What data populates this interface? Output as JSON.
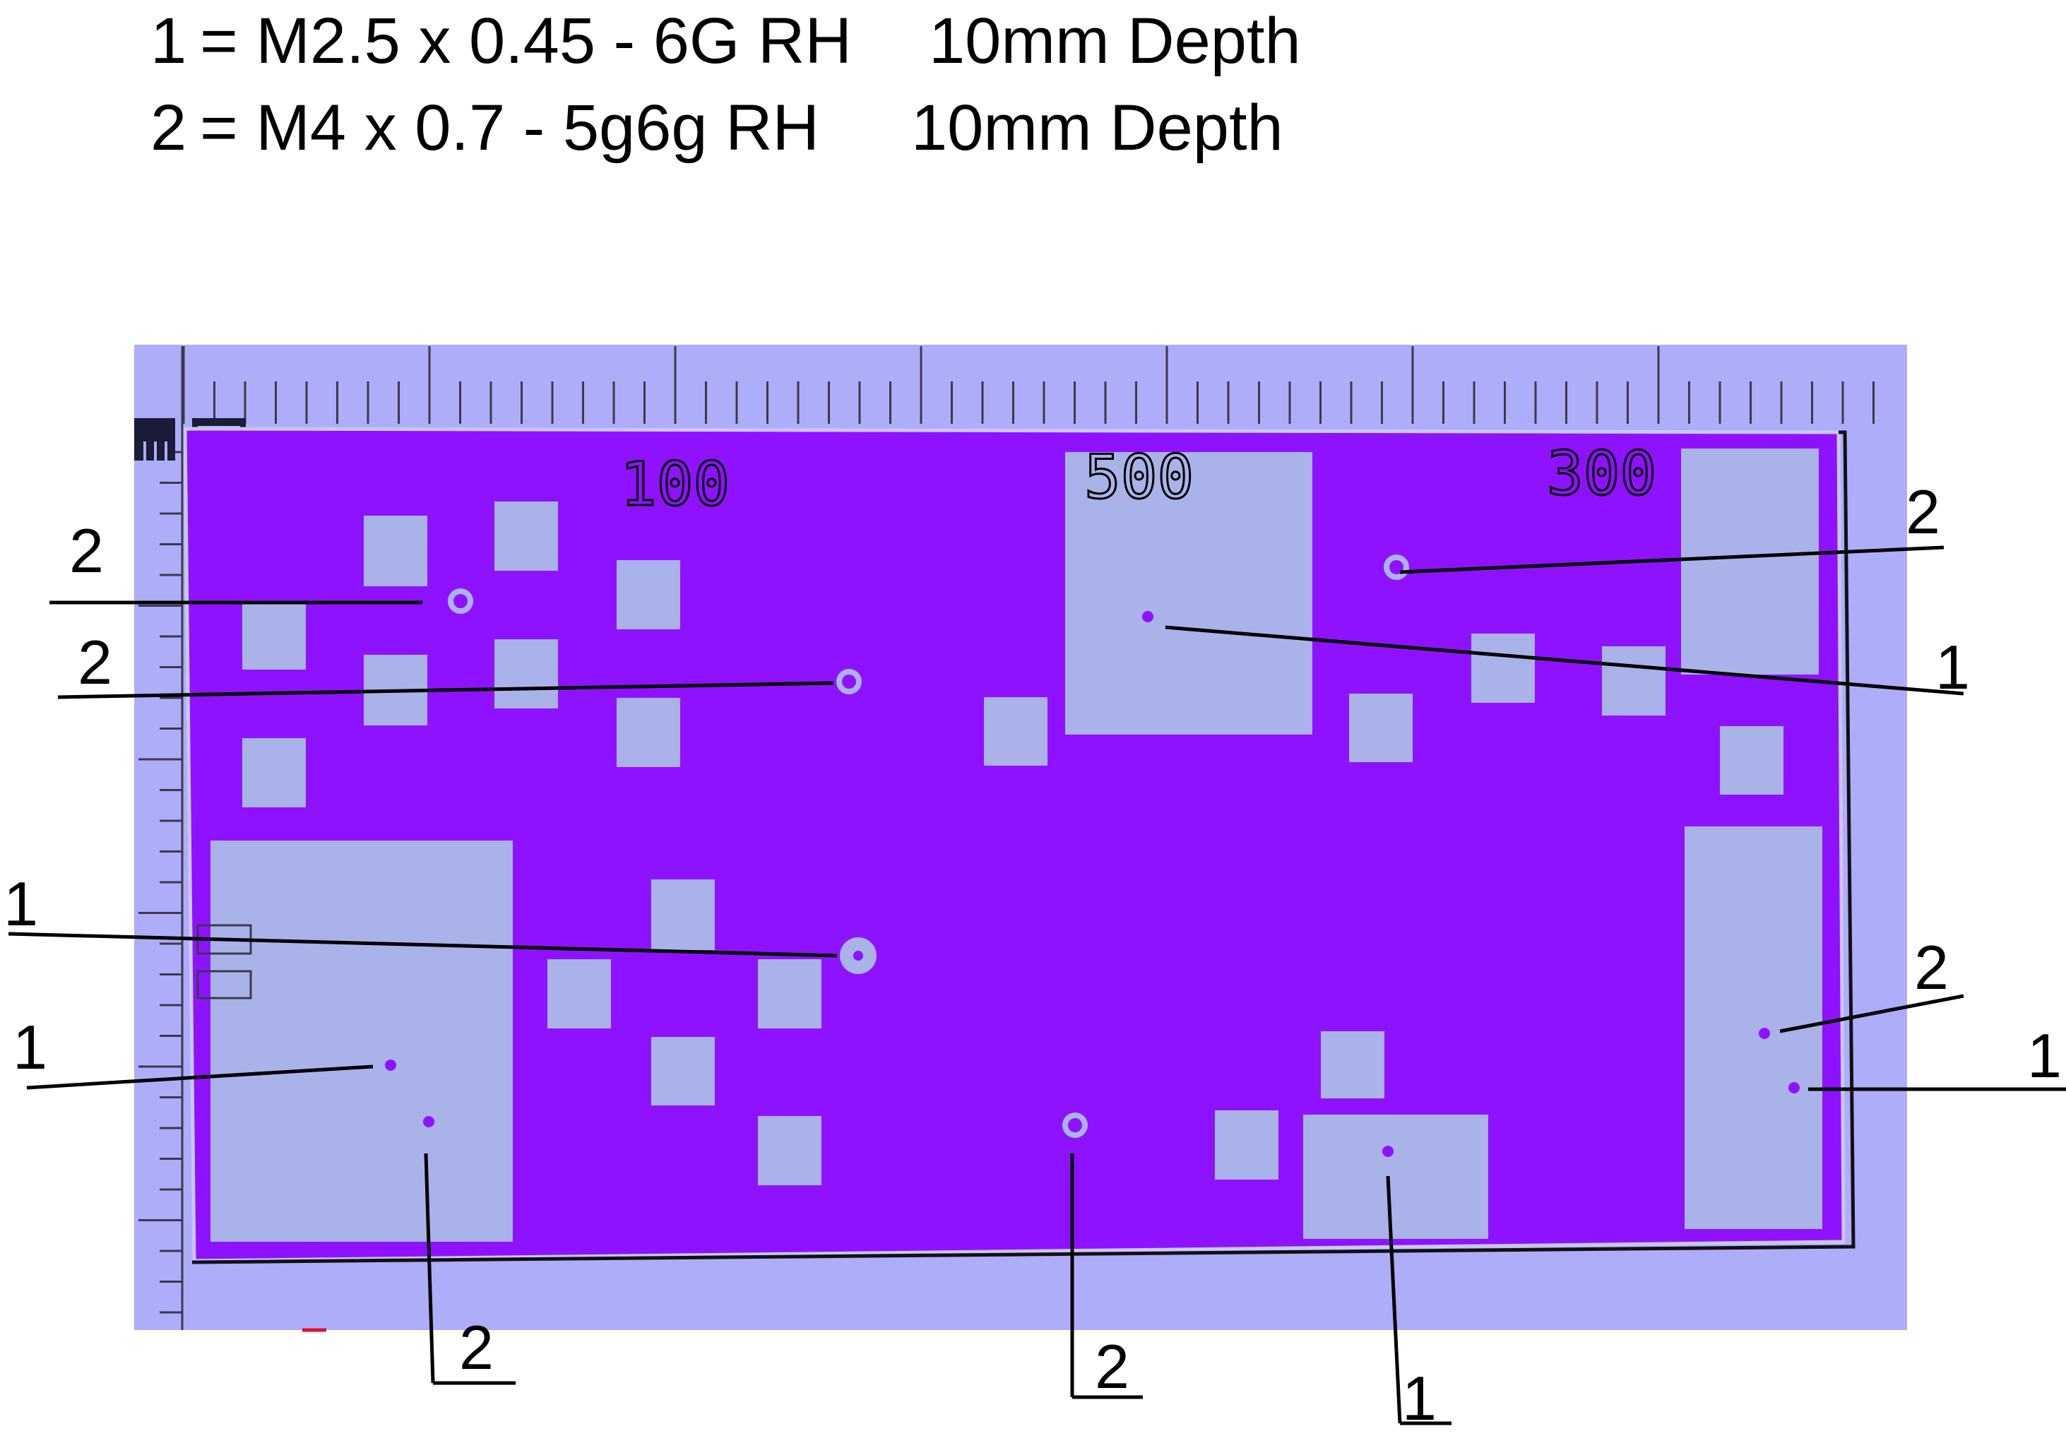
{
  "legend": [
    {
      "number": "1",
      "spec": "= M2.5 x 0.45 - 6G RH",
      "depth": "10mm Depth"
    },
    {
      "number": "2",
      "spec": "= M4 x 0.7 - 5g6g RH",
      "depth": "10mm Depth"
    }
  ],
  "plate_labels": [
    "100",
    "500",
    "300"
  ],
  "colors": {
    "background": "#adadfa",
    "plate": "#8e12ff",
    "pad": "#aab2ea",
    "hole": "#aab2ea",
    "tap_dot": "#8e12ff",
    "leader": "#000000"
  },
  "callouts": [
    {
      "type": "2",
      "hole_size": "ring"
    },
    {
      "type": "2",
      "hole_size": "ring"
    },
    {
      "type": "2",
      "hole_size": "ring"
    },
    {
      "type": "1",
      "hole_size": "dot"
    },
    {
      "type": "1",
      "hole_size": "large-ring"
    },
    {
      "type": "1",
      "hole_size": "dot"
    },
    {
      "type": "2",
      "hole_size": "dot"
    },
    {
      "type": "2",
      "hole_size": "ring"
    },
    {
      "type": "1",
      "hole_size": "dot"
    },
    {
      "type": "2",
      "hole_size": "dot"
    },
    {
      "type": "1",
      "hole_size": "dot"
    }
  ]
}
